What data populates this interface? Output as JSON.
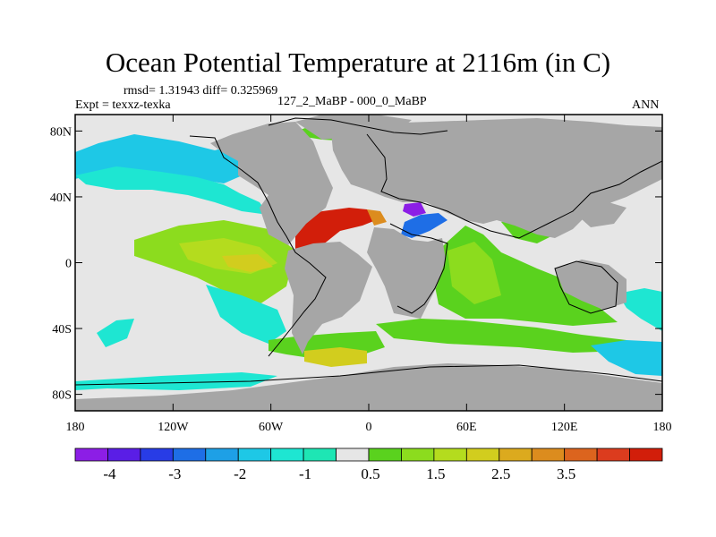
{
  "chart_data": {
    "type": "heatmap",
    "title": "Ocean Potential Temperature at 2116m (in C)",
    "stats_text": "rmsd= 1.31943 diff= 0.325969",
    "experiment_text": "Expt = texxz-texka",
    "comparison_text": "127_2_MaBP - 000_0_MaBP",
    "season": "ANN",
    "x_ticks": [
      "180",
      "120W",
      "60W",
      "0",
      "60E",
      "120E",
      "180"
    ],
    "x_tick_values": [
      -180,
      -120,
      -60,
      0,
      60,
      120,
      180
    ],
    "y_ticks": [
      "80N",
      "40N",
      "0",
      "40S",
      "80S"
    ],
    "y_tick_values": [
      80,
      40,
      0,
      -40,
      -80
    ],
    "xlim": [
      -180,
      180
    ],
    "ylim": [
      -90,
      90
    ],
    "colorbar": {
      "levels": [
        -4.5,
        -4,
        -3.5,
        -3,
        -2.5,
        -2,
        -1.5,
        -1,
        -0.5,
        0,
        0.5,
        1,
        1.5,
        2,
        2.5,
        3,
        3.5,
        4
      ],
      "labels": [
        "-4",
        "-3",
        "-2",
        "-1",
        "0.5",
        "1.5",
        "2.5",
        "3.5"
      ],
      "label_bins": [
        1,
        3,
        5,
        7,
        9,
        11,
        13,
        15
      ],
      "colors": [
        "#8c1ee6",
        "#5a1ee6",
        "#283ce6",
        "#1e6ee6",
        "#1ea0e6",
        "#1ec8e6",
        "#1ee6d2",
        "#1ee6b4",
        "#e6e6e6",
        "#5ad21e",
        "#8cdc1e",
        "#b4dc1e",
        "#d2cd1e",
        "#dcaa1e",
        "#dc8c1e",
        "#dc641e",
        "#dc3c1e",
        "#d21e0a"
      ]
    },
    "regions": [
      {
        "name": "north-pacific-cyan",
        "value": -1.5,
        "lon": [
          -180,
          -100
        ],
        "lat": [
          50,
          78
        ]
      },
      {
        "name": "north-pacific-teal",
        "value": -0.8,
        "lon": [
          -150,
          -80
        ],
        "lat": [
          30,
          50
        ]
      },
      {
        "name": "tropical-pacific-green",
        "value": 1.5,
        "lon": [
          -140,
          -80
        ],
        "lat": [
          -20,
          15
        ]
      },
      {
        "name": "east-pacific-yellow",
        "value": 2.3,
        "lon": [
          -100,
          -80
        ],
        "lat": [
          -5,
          5
        ]
      },
      {
        "name": "south-atlantic-yellow",
        "value": 2.3,
        "lon": [
          -50,
          10
        ],
        "lat": [
          -60,
          -40
        ]
      },
      {
        "name": "north-atlantic-red",
        "value": 4.2,
        "lon": [
          -50,
          -5
        ],
        "lat": [
          20,
          40
        ]
      },
      {
        "name": "mediterranean-purple",
        "value": -4.2,
        "lon": [
          25,
          35
        ],
        "lat": [
          35,
          42
        ]
      },
      {
        "name": "indian-ocean-green",
        "value": 1.3,
        "lon": [
          45,
          110
        ],
        "lat": [
          -30,
          20
        ]
      },
      {
        "name": "south-pacific-cyan",
        "value": -0.8,
        "lon": [
          150,
          180
        ],
        "lat": [
          -60,
          -40
        ]
      }
    ]
  }
}
